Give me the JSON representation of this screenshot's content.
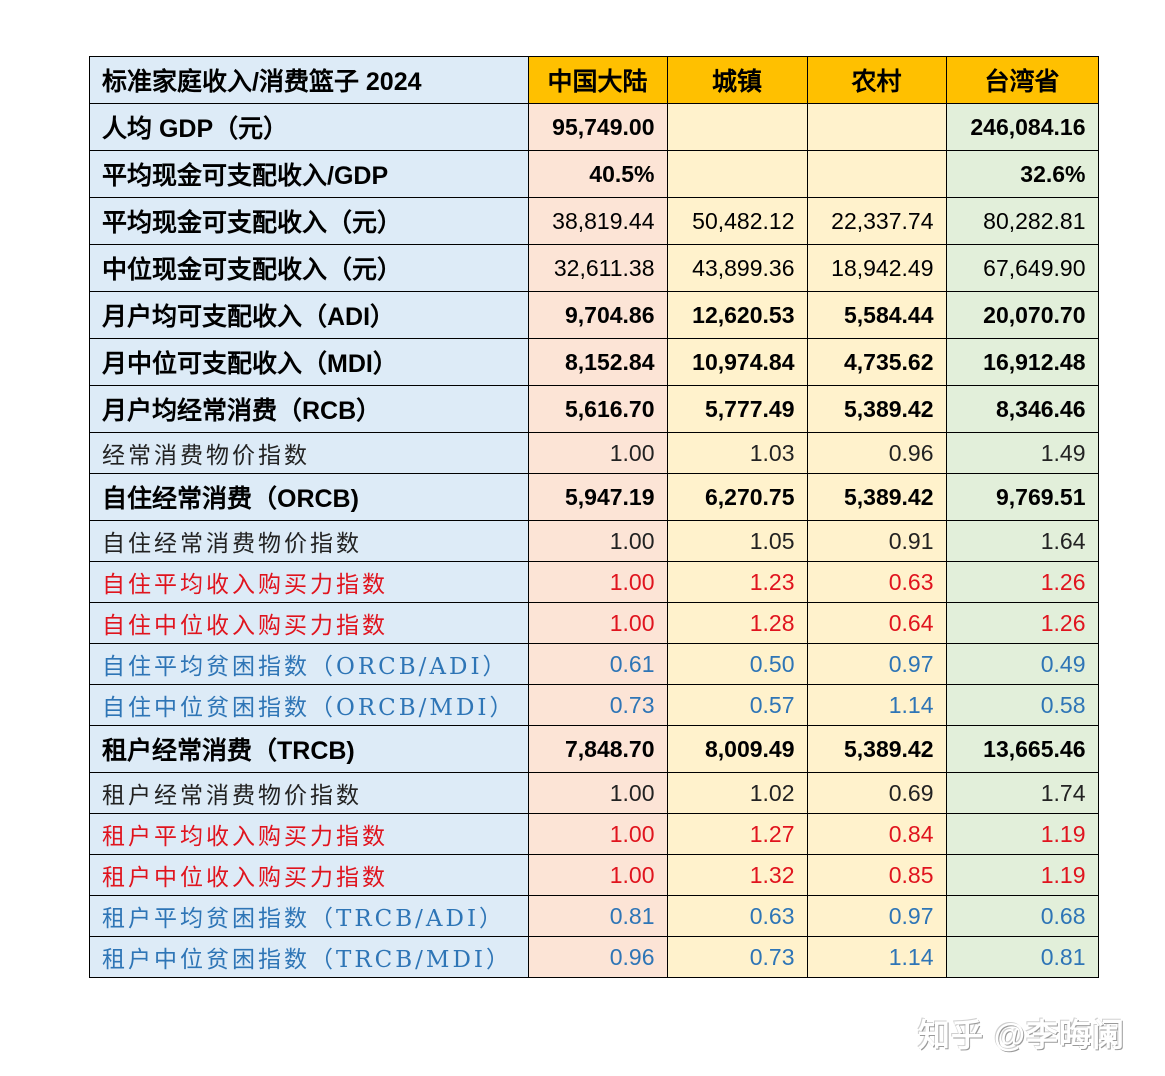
{
  "table": {
    "header": [
      "标准家庭收入/消费篮子 2024",
      "中国大陆",
      "城镇",
      "农村",
      "台湾省"
    ],
    "rows": [
      {
        "label": "人均 GDP（元）",
        "values": [
          "95,749.00",
          "",
          "",
          "246,084.16"
        ],
        "style": "big bold"
      },
      {
        "label": "平均现金可支配收入/GDP",
        "values": [
          "40.5%",
          "",
          "",
          "32.6%"
        ],
        "style": "big bold"
      },
      {
        "label": "平均现金可支配收入（元）",
        "values": [
          "38,819.44",
          "50,482.12",
          "22,337.74",
          "80,282.81"
        ],
        "style": "big plain"
      },
      {
        "label": "中位现金可支配收入（元）",
        "values": [
          "32,611.38",
          "43,899.36",
          "18,942.49",
          "67,649.90"
        ],
        "style": "big plain"
      },
      {
        "label": "月户均可支配收入（ADI）",
        "values": [
          "9,704.86",
          "12,620.53",
          "5,584.44",
          "20,070.70"
        ],
        "style": "big bold"
      },
      {
        "label": "月中位可支配收入（MDI）",
        "values": [
          "8,152.84",
          "10,974.84",
          "4,735.62",
          "16,912.48"
        ],
        "style": "big bold"
      },
      {
        "label": "月户均经常消费（RCB）",
        "values": [
          "5,616.70",
          "5,777.49",
          "5,389.42",
          "8,346.46"
        ],
        "style": "big bold"
      },
      {
        "label": "经常消费物价指数",
        "values": [
          "1.00",
          "1.03",
          "0.96",
          "1.49"
        ],
        "style": "sub black"
      },
      {
        "label": "自住经常消费（ORCB)",
        "values": [
          "5,947.19",
          "6,270.75",
          "5,389.42",
          "9,769.51"
        ],
        "style": "big bold"
      },
      {
        "label": "自住经常消费物价指数",
        "values": [
          "1.00",
          "1.05",
          "0.91",
          "1.64"
        ],
        "style": "sub black"
      },
      {
        "label": "自住平均收入购买力指数",
        "values": [
          "1.00",
          "1.23",
          "0.63",
          "1.26"
        ],
        "style": "sub red"
      },
      {
        "label": "自住中位收入购买力指数",
        "values": [
          "1.00",
          "1.28",
          "0.64",
          "1.26"
        ],
        "style": "sub red"
      },
      {
        "label": "自住平均贫困指数（ORCB/ADI）",
        "values": [
          "0.61",
          "0.50",
          "0.97",
          "0.49"
        ],
        "style": "sub blue"
      },
      {
        "label": "自住中位贫困指数（ORCB/MDI）",
        "values": [
          "0.73",
          "0.57",
          "1.14",
          "0.58"
        ],
        "style": "sub blue"
      },
      {
        "label": "租户经常消费（TRCB)",
        "values": [
          "7,848.70",
          "8,009.49",
          "5,389.42",
          "13,665.46"
        ],
        "style": "big bold"
      },
      {
        "label": "租户经常消费物价指数",
        "values": [
          "1.00",
          "1.02",
          "0.69",
          "1.74"
        ],
        "style": "sub black"
      },
      {
        "label": "租户平均收入购买力指数",
        "values": [
          "1.00",
          "1.27",
          "0.84",
          "1.19"
        ],
        "style": "sub red"
      },
      {
        "label": "租户中位收入购买力指数",
        "values": [
          "1.00",
          "1.32",
          "0.85",
          "1.19"
        ],
        "style": "sub red"
      },
      {
        "label": "租户平均贫困指数（TRCB/ADI）",
        "values": [
          "0.81",
          "0.63",
          "0.97",
          "0.68"
        ],
        "style": "sub blue"
      },
      {
        "label": "租户中位贫困指数（TRCB/MDI）",
        "values": [
          "0.96",
          "0.73",
          "1.14",
          "0.81"
        ],
        "style": "sub blue"
      }
    ]
  },
  "colors": {
    "header_bg": "#ffc000",
    "label_bg": "#ddebf7",
    "mainland_bg": "#fce4d6",
    "urban_rural_bg": "#fff2cc",
    "taiwan_bg": "#e2efda",
    "red_text": "#e0141e",
    "blue_text": "#2e75b6"
  },
  "watermark": "知乎 @李晦阑"
}
